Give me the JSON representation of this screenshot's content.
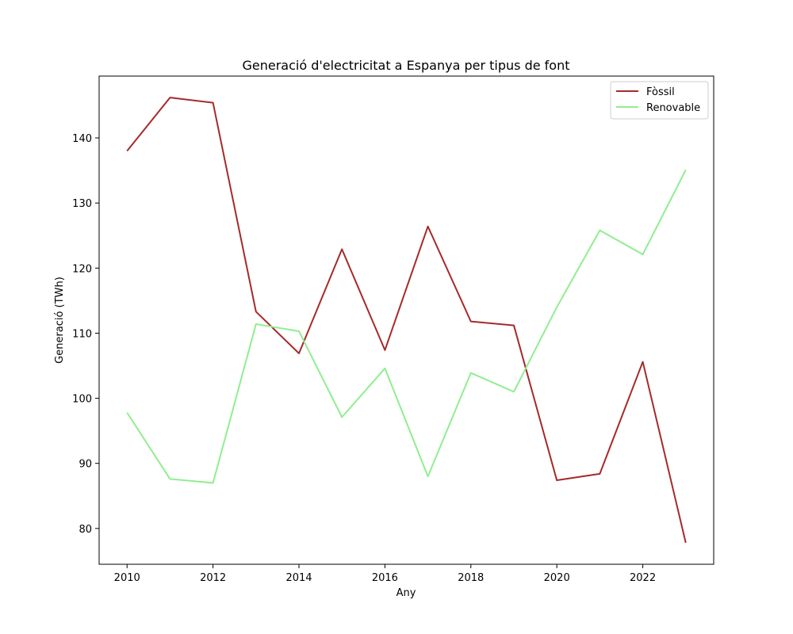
{
  "chart_data": {
    "type": "line",
    "title": "Generació d'electricitat a Espanya per tipus de font",
    "xlabel": "Any",
    "ylabel": "Generació (TWh)",
    "x": [
      2010,
      2011,
      2012,
      2013,
      2014,
      2015,
      2016,
      2017,
      2018,
      2019,
      2020,
      2021,
      2022,
      2023
    ],
    "xlim": [
      2009.35,
      2023.65
    ],
    "ylim": [
      74.5,
      149.5
    ],
    "xticks": [
      2010,
      2012,
      2014,
      2016,
      2018,
      2020,
      2022
    ],
    "yticks": [
      80,
      90,
      100,
      110,
      120,
      130,
      140
    ],
    "grid": false,
    "legend_position": "top-right",
    "series": [
      {
        "name": "Fòssil",
        "color": "#a52a2a",
        "values": [
          138.0,
          146.2,
          145.4,
          113.3,
          106.9,
          122.9,
          107.4,
          126.4,
          111.8,
          111.2,
          87.4,
          88.4,
          105.6,
          77.8
        ]
      },
      {
        "name": "Renovable",
        "color": "#90ee90",
        "values": [
          97.8,
          87.6,
          87.0,
          111.4,
          110.3,
          97.1,
          104.6,
          88.0,
          103.9,
          101.0,
          114.0,
          125.8,
          122.1,
          135.1
        ]
      }
    ]
  }
}
